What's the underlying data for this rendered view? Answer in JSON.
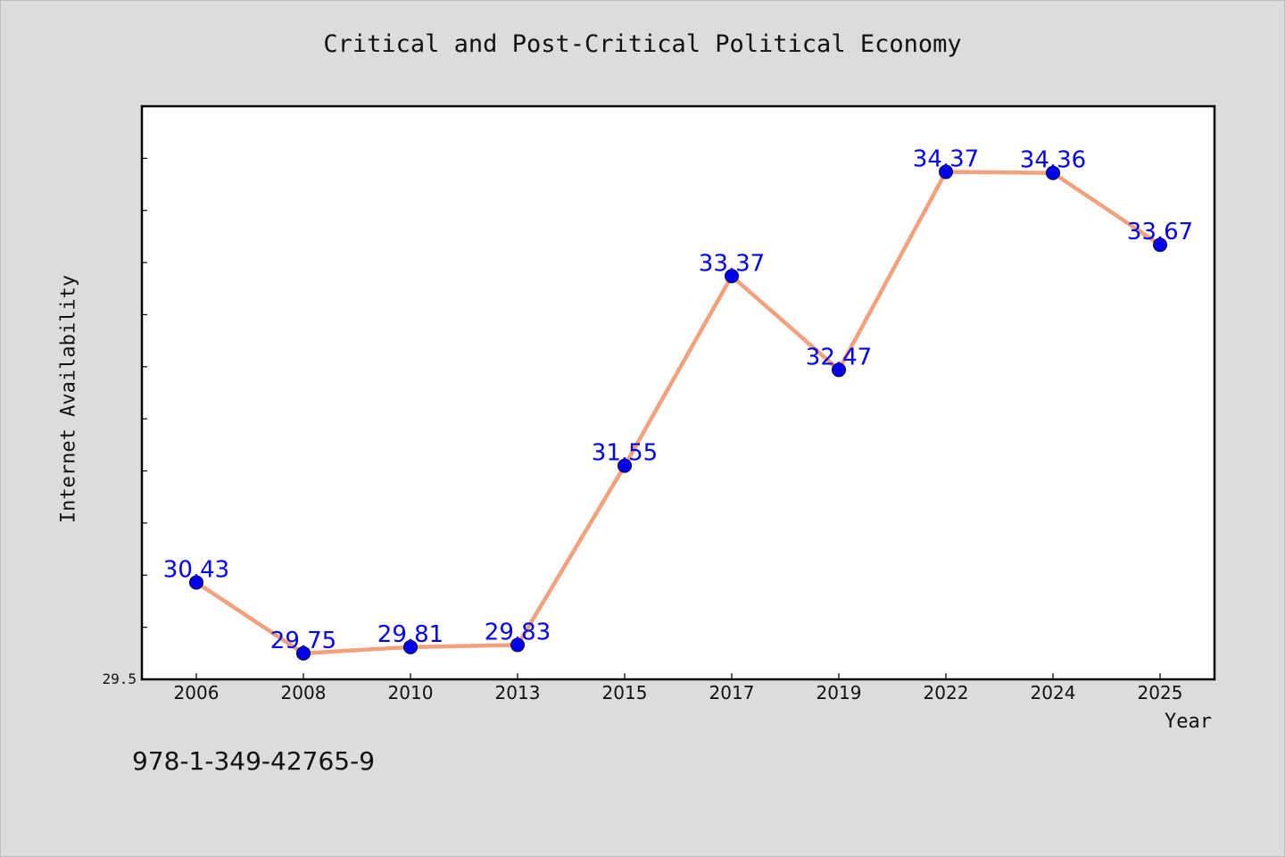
{
  "chart_data": {
    "type": "line",
    "title": "Critical and Post-Critical Political Economy",
    "xlabel": "Year",
    "ylabel": "Internet Availability",
    "categories": [
      "2006",
      "2008",
      "2010",
      "2013",
      "2015",
      "2017",
      "2019",
      "2022",
      "2024",
      "2025"
    ],
    "series": [
      {
        "values": [
          30.43,
          29.75,
          29.81,
          29.83,
          31.55,
          33.37,
          32.47,
          34.37,
          34.36,
          33.67
        ],
        "labels": [
          "30.43",
          "29.75",
          "29.81",
          "29.83",
          "31.55",
          "33.37",
          "32.47",
          "34.37",
          "34.36",
          "33.67"
        ]
      }
    ],
    "y_tick_labels": [
      "29.5"
    ],
    "ylim": [
      29.5,
      35.0
    ],
    "grid": false,
    "colors": {
      "line": "#f4a07a",
      "marker": "#0000ee",
      "label": "#0000ee"
    }
  },
  "annotation": {
    "isbn": "978-1-349-42765-9"
  }
}
